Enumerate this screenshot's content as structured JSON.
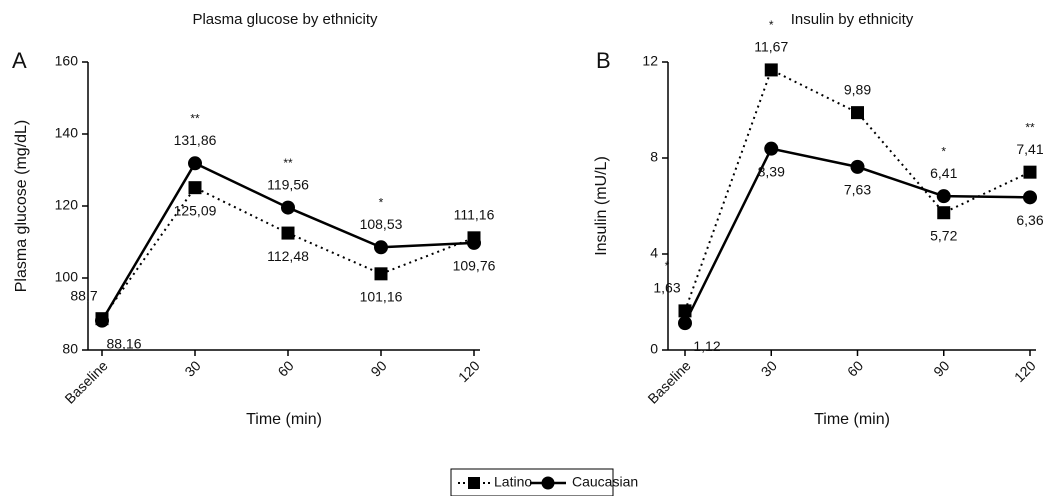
{
  "chart_data": [
    {
      "type": "line",
      "panel": "A",
      "title": "Plasma glucose by ethnicity",
      "x_label": "Time (min)",
      "y_label": "Plasma glucose (mg/dL)",
      "categories": [
        "Baseline",
        "30",
        "60",
        "90",
        "120"
      ],
      "ylim": [
        80,
        160
      ],
      "yticks": [
        80,
        100,
        120,
        140,
        160
      ],
      "significance": [
        null,
        "**",
        "**",
        "*",
        null
      ],
      "series": [
        {
          "name": "Latino",
          "color": "#000000",
          "line_style": "dotted",
          "marker": "square",
          "values": [
            88.7,
            125.09,
            112.48,
            101.16,
            111.16
          ],
          "value_labels": [
            "88,7",
            "125,09",
            "112,48",
            "101,16",
            "111,16"
          ]
        },
        {
          "name": "Caucasian",
          "color": "#000000",
          "line_style": "solid",
          "marker": "circle",
          "values": [
            88.16,
            131.86,
            119.56,
            108.53,
            109.76
          ],
          "value_labels": [
            "88,16",
            "131,86",
            "119,56",
            "108,53",
            "109,76"
          ]
        }
      ]
    },
    {
      "type": "line",
      "panel": "B",
      "title": "Insulin by ethnicity",
      "x_label": "Time (min)",
      "y_label": "Insulin (mU/L)",
      "categories": [
        "Baseline",
        "30",
        "60",
        "90",
        "120"
      ],
      "ylim": [
        0,
        12
      ],
      "yticks": [
        0,
        4,
        8,
        12
      ],
      "significance": [
        "*",
        "*",
        null,
        "*",
        "**"
      ],
      "series": [
        {
          "name": "Latino",
          "color": "#000000",
          "line_style": "dotted",
          "marker": "square",
          "values": [
            1.63,
            11.67,
            9.89,
            5.72,
            7.41
          ],
          "value_labels": [
            "1,63",
            "11,67",
            "9,89",
            "5,72",
            "7,41"
          ]
        },
        {
          "name": "Caucasian",
          "color": "#000000",
          "line_style": "solid",
          "marker": "circle",
          "values": [
            1.12,
            8.39,
            7.63,
            6.41,
            6.36
          ],
          "value_labels": [
            "1,12",
            "8,39",
            "7,63",
            "6,41",
            "6,36"
          ]
        }
      ]
    }
  ]
}
